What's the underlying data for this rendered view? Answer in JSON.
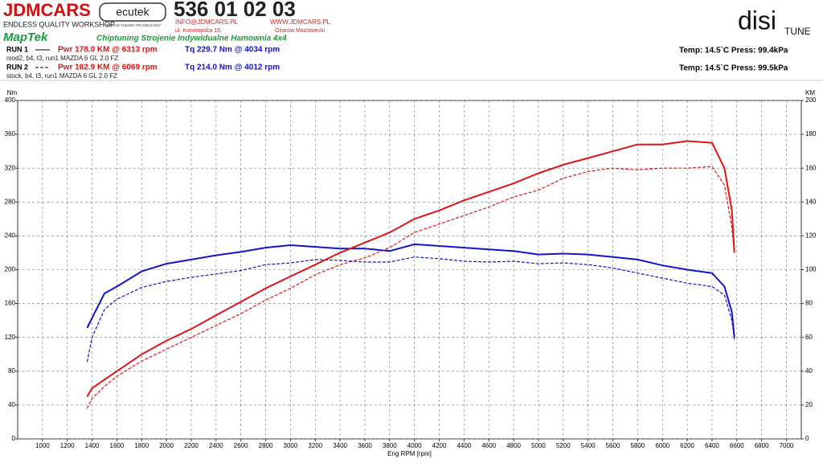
{
  "header": {
    "brand": "JDMCARS",
    "brand_tagline": "ENDLESS QUALITY WORKSHOP",
    "ecutek": "ecutek",
    "ecutek_tagline": "VEHICLE TUNING TECHNOLOGY",
    "phone": "536 01 02 03",
    "email": "INFO@JDMCARS.PL",
    "web": "WWW.JDMCARS.PL",
    "street": "ul. Konotopska 19,",
    "city": "Ożarów Mazowiecki",
    "maptek": "MapTek",
    "services": "Chiptuning Strojenie Indywidualne Hamownia 4x4",
    "disi": "disi",
    "tune": "TUNE",
    "runs": [
      {
        "label": "RUN 1",
        "power": "Pwr  178.0 KM @ 6313 rpm",
        "torque": "Tq 229.7 Nm @ 4034 rpm",
        "description": "mod2, b4, t3, run1 MAZDA 6 GL 2.0 FZ",
        "conditions": "Temp: 14.5`C   Press: 99.4kPa"
      },
      {
        "label": "RUN 2",
        "power": "Pwr  162.9 KM @ 6069 rpm",
        "torque": "Tq 214.0 Nm @ 4012 rpm",
        "description": "stock, b4, t3, run1 MAZDA 6 GL 2.0 FZ",
        "conditions": "Temp: 14.5`C   Press: 99.5kPa"
      }
    ]
  },
  "chart_data": {
    "type": "line",
    "x_label": "Eng RPM [rpm]",
    "y_label": "Nm",
    "y2_label": "KM",
    "xlim": [
      800,
      7120
    ],
    "ylim": [
      0,
      400
    ],
    "y2lim": [
      0,
      200
    ],
    "xticks": [
      1000,
      1200,
      1400,
      1600,
      1800,
      2000,
      2200,
      2400,
      2600,
      2800,
      3000,
      3200,
      3400,
      3600,
      3800,
      4000,
      4200,
      4400,
      4600,
      4800,
      5000,
      5200,
      5400,
      5600,
      5800,
      6000,
      6200,
      6400,
      6600,
      6800,
      7000
    ],
    "yticks": [
      0,
      40,
      80,
      120,
      160,
      200,
      240,
      280,
      320,
      360,
      400
    ],
    "y2ticks": [
      0,
      20,
      40,
      60,
      80,
      100,
      120,
      140,
      160,
      180,
      200
    ],
    "grid": true,
    "x": [
      1360,
      1400,
      1500,
      1600,
      1800,
      2000,
      2200,
      2400,
      2600,
      2800,
      3000,
      3200,
      3400,
      3600,
      3800,
      4000,
      4200,
      4400,
      4600,
      4800,
      5000,
      5200,
      5400,
      5600,
      5800,
      6000,
      6200,
      6400,
      6500,
      6560,
      6580
    ],
    "series": [
      {
        "color": "#1414c8",
        "style": "solid",
        "axis": "y",
        "values": [
          131,
          143,
          172,
          180,
          198,
          207,
          212,
          217,
          221,
          226,
          229,
          227,
          225,
          225,
          222,
          230,
          228,
          226,
          224,
          222,
          218,
          219,
          218,
          215,
          212,
          205,
          200,
          196,
          180,
          150,
          120
        ]
      },
      {
        "color": "#1414c8",
        "style": "dashed",
        "axis": "y",
        "values": [
          91,
          120,
          153,
          165,
          179,
          186,
          191,
          195,
          199,
          206,
          208,
          212,
          211,
          209,
          209,
          215,
          213,
          210,
          209,
          210,
          207,
          208,
          206,
          202,
          196,
          190,
          184,
          180,
          170,
          140,
          118
        ]
      },
      {
        "color": "#e01414",
        "style": "solid",
        "axis": "y2",
        "values": [
          25,
          30,
          35,
          40,
          50,
          58,
          65,
          73,
          81,
          89,
          96,
          103,
          110,
          116,
          122,
          130,
          135,
          141,
          146,
          151,
          157,
          162,
          166,
          170,
          174,
          174,
          176,
          175,
          160,
          135,
          110
        ]
      },
      {
        "color": "#e01414",
        "style": "dashed",
        "axis": "y2",
        "values": [
          18,
          24,
          31,
          37,
          46,
          53,
          60,
          67,
          74,
          82,
          89,
          97,
          103,
          107,
          113,
          122,
          127,
          132,
          137,
          143,
          147,
          154,
          158,
          160,
          159,
          160,
          160,
          161,
          150,
          125,
          110
        ]
      }
    ]
  }
}
